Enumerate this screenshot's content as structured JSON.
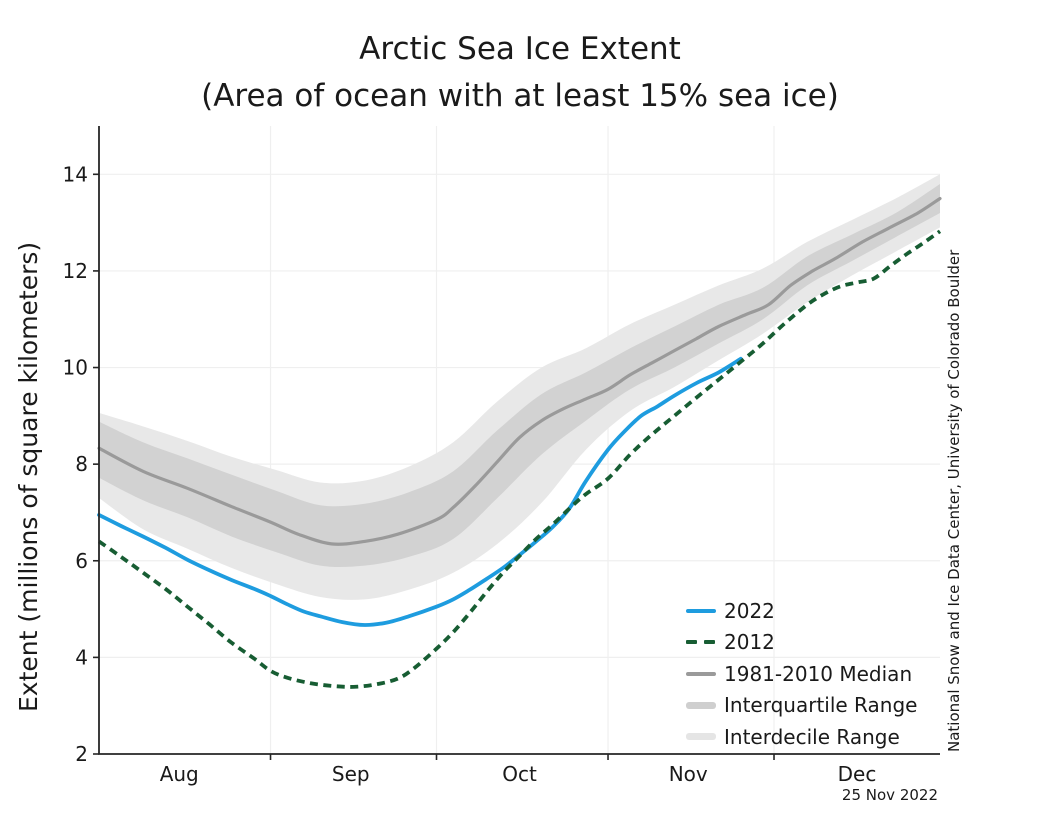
{
  "title": {
    "line1": "Arctic Sea Ice Extent",
    "line2": "(Area of ocean with at least 15% sea ice)"
  },
  "y_axis": {
    "label": "Extent (millions of square kilometers)"
  },
  "credit": "National Snow and Ice Data Center, University of Colorado Boulder",
  "date_stamp": "25 Nov 2022",
  "colors": {
    "series_2022": "#1e9cdf",
    "series_2012": "#175d33",
    "median": "#9a9a9a",
    "interquartile": "#d2d2d2",
    "interdecile": "#e8e8e8",
    "interquartile_swatch": "#cfcfcf",
    "interdecile_swatch": "#e5e5e5",
    "grid": "#efefef",
    "axis": "#262626",
    "text": "#1a1a1a"
  },
  "legend": {
    "items": [
      {
        "label": "2022",
        "swatch": "line",
        "color_key": "series_2022"
      },
      {
        "label": "2012",
        "swatch": "dashes",
        "color_key": "series_2012"
      },
      {
        "label": "1981-2010 Median",
        "swatch": "line",
        "color_key": "median"
      },
      {
        "label": "Interquartile Range",
        "swatch": "band",
        "color_key": "interquartile_swatch"
      },
      {
        "label": "Interdecile Range",
        "swatch": "band",
        "color_key": "interdecile_swatch"
      }
    ]
  },
  "chart_data": {
    "type": "line",
    "title": "Arctic Sea Ice Extent",
    "subtitle": "(Area of ocean with at least 15% sea ice)",
    "xlabel": "",
    "ylabel": "Extent (millions of square kilometers)",
    "units": "millions of square kilometers",
    "ylim": [
      2,
      15
    ],
    "y_ticks": [
      2,
      4,
      6,
      8,
      10,
      12,
      14
    ],
    "grid": true,
    "legend_position": "lower right",
    "x_unit": "days since Aug 1",
    "x_domain": [
      0,
      152
    ],
    "x_ticks": {
      "boundary_days": [
        31,
        61,
        92,
        122
      ],
      "months": [
        {
          "label": "Aug",
          "mid_day": 14.5
        },
        {
          "label": "Sep",
          "mid_day": 45.5
        },
        {
          "label": "Oct",
          "mid_day": 76
        },
        {
          "label": "Nov",
          "mid_day": 106.5
        },
        {
          "label": "Dec",
          "mid_day": 137
        }
      ]
    },
    "series": [
      {
        "name": "2022",
        "style": "solid",
        "color_key": "series_2022",
        "width": 3.8,
        "points": [
          [
            0,
            6.95
          ],
          [
            4,
            6.72
          ],
          [
            8,
            6.5
          ],
          [
            12,
            6.27
          ],
          [
            16,
            6.02
          ],
          [
            20,
            5.8
          ],
          [
            24,
            5.6
          ],
          [
            28,
            5.42
          ],
          [
            31,
            5.27
          ],
          [
            34,
            5.1
          ],
          [
            37,
            4.95
          ],
          [
            40,
            4.85
          ],
          [
            44,
            4.73
          ],
          [
            48,
            4.67
          ],
          [
            52,
            4.72
          ],
          [
            56,
            4.85
          ],
          [
            61,
            5.05
          ],
          [
            64,
            5.2
          ],
          [
            67,
            5.4
          ],
          [
            70,
            5.62
          ],
          [
            73,
            5.85
          ],
          [
            76,
            6.12
          ],
          [
            79,
            6.4
          ],
          [
            82,
            6.7
          ],
          [
            85,
            7.08
          ],
          [
            88,
            7.65
          ],
          [
            92,
            8.3
          ],
          [
            95,
            8.68
          ],
          [
            98,
            9.0
          ],
          [
            101,
            9.2
          ],
          [
            104,
            9.42
          ],
          [
            108,
            9.68
          ],
          [
            112,
            9.9
          ],
          [
            116,
            10.18
          ]
        ]
      },
      {
        "name": "2012",
        "style": "dashed",
        "color_key": "series_2012",
        "width": 3.8,
        "points": [
          [
            0,
            6.4
          ],
          [
            4,
            6.08
          ],
          [
            8,
            5.75
          ],
          [
            12,
            5.42
          ],
          [
            16,
            5.05
          ],
          [
            20,
            4.68
          ],
          [
            24,
            4.3
          ],
          [
            28,
            3.98
          ],
          [
            31,
            3.72
          ],
          [
            34,
            3.58
          ],
          [
            38,
            3.47
          ],
          [
            42,
            3.41
          ],
          [
            46,
            3.39
          ],
          [
            50,
            3.44
          ],
          [
            54,
            3.56
          ],
          [
            57,
            3.78
          ],
          [
            61,
            4.18
          ],
          [
            64,
            4.52
          ],
          [
            67,
            4.92
          ],
          [
            70,
            5.35
          ],
          [
            73,
            5.75
          ],
          [
            76,
            6.1
          ],
          [
            79,
            6.45
          ],
          [
            82,
            6.75
          ],
          [
            85,
            7.08
          ],
          [
            88,
            7.38
          ],
          [
            92,
            7.7
          ],
          [
            96,
            8.2
          ],
          [
            100,
            8.62
          ],
          [
            104,
            9.0
          ],
          [
            108,
            9.38
          ],
          [
            112,
            9.75
          ],
          [
            116,
            10.12
          ],
          [
            120,
            10.5
          ],
          [
            124,
            10.92
          ],
          [
            128,
            11.3
          ],
          [
            131,
            11.52
          ],
          [
            134,
            11.68
          ],
          [
            137,
            11.76
          ],
          [
            140,
            11.84
          ],
          [
            143,
            12.1
          ],
          [
            146,
            12.35
          ],
          [
            149,
            12.58
          ],
          [
            152,
            12.82
          ]
        ]
      },
      {
        "name": "1981-2010 Median",
        "style": "solid",
        "color_key": "median",
        "width": 3.2,
        "points": [
          [
            0,
            8.33
          ],
          [
            8,
            7.85
          ],
          [
            16,
            7.5
          ],
          [
            24,
            7.12
          ],
          [
            31,
            6.8
          ],
          [
            36,
            6.55
          ],
          [
            42,
            6.35
          ],
          [
            48,
            6.4
          ],
          [
            54,
            6.55
          ],
          [
            61,
            6.85
          ],
          [
            64,
            7.1
          ],
          [
            68,
            7.55
          ],
          [
            72,
            8.05
          ],
          [
            76,
            8.55
          ],
          [
            80,
            8.9
          ],
          [
            84,
            9.15
          ],
          [
            88,
            9.35
          ],
          [
            92,
            9.55
          ],
          [
            96,
            9.85
          ],
          [
            100,
            10.1
          ],
          [
            104,
            10.35
          ],
          [
            108,
            10.6
          ],
          [
            112,
            10.85
          ],
          [
            117,
            11.1
          ],
          [
            121,
            11.3
          ],
          [
            125,
            11.7
          ],
          [
            129,
            12.0
          ],
          [
            133,
            12.25
          ],
          [
            138,
            12.6
          ],
          [
            143,
            12.9
          ],
          [
            148,
            13.2
          ],
          [
            152,
            13.5
          ]
        ]
      }
    ],
    "bands": [
      {
        "name": "Interdecile Range",
        "color_key": "interdecile",
        "points": [
          [
            0,
            7.3,
            9.06
          ],
          [
            8,
            6.65,
            8.78
          ],
          [
            16,
            6.25,
            8.48
          ],
          [
            24,
            5.85,
            8.15
          ],
          [
            32,
            5.52,
            7.88
          ],
          [
            40,
            5.25,
            7.62
          ],
          [
            48,
            5.2,
            7.66
          ],
          [
            56,
            5.4,
            7.95
          ],
          [
            64,
            5.75,
            8.45
          ],
          [
            72,
            6.35,
            9.3
          ],
          [
            80,
            7.2,
            10.0
          ],
          [
            88,
            8.3,
            10.4
          ],
          [
            96,
            9.1,
            10.9
          ],
          [
            104,
            9.6,
            11.3
          ],
          [
            112,
            10.15,
            11.7
          ],
          [
            120,
            10.7,
            12.05
          ],
          [
            128,
            11.35,
            12.6
          ],
          [
            136,
            11.9,
            13.05
          ],
          [
            144,
            12.4,
            13.5
          ],
          [
            152,
            12.9,
            14.0
          ]
        ]
      },
      {
        "name": "Interquartile Range",
        "color_key": "interquartile",
        "points": [
          [
            0,
            7.72,
            8.88
          ],
          [
            8,
            7.25,
            8.45
          ],
          [
            16,
            6.9,
            8.12
          ],
          [
            24,
            6.5,
            7.78
          ],
          [
            32,
            6.18,
            7.45
          ],
          [
            40,
            5.9,
            7.15
          ],
          [
            48,
            5.9,
            7.18
          ],
          [
            56,
            6.08,
            7.42
          ],
          [
            64,
            6.45,
            7.85
          ],
          [
            72,
            7.3,
            8.7
          ],
          [
            80,
            8.2,
            9.45
          ],
          [
            88,
            8.9,
            9.9
          ],
          [
            96,
            9.55,
            10.4
          ],
          [
            104,
            10.0,
            10.85
          ],
          [
            112,
            10.5,
            11.3
          ],
          [
            120,
            11.0,
            11.65
          ],
          [
            128,
            11.7,
            12.3
          ],
          [
            136,
            12.2,
            12.75
          ],
          [
            144,
            12.7,
            13.2
          ],
          [
            152,
            13.2,
            13.8
          ]
        ]
      }
    ]
  }
}
